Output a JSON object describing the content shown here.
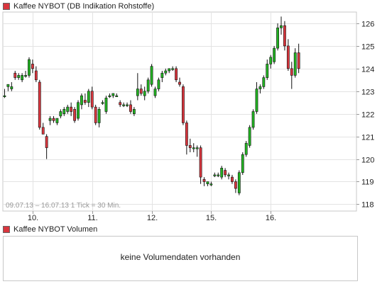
{
  "main_legend": {
    "label": "Kaffee NYBOT (DB Indikation Rohstoffe)",
    "color": "#d9363e"
  },
  "volume_legend": {
    "label": "Kaffee NYBOT Volumen",
    "color": "#d9363e"
  },
  "volume_panel": {
    "message": "keine Volumendaten vorhanden"
  },
  "chart_data": [
    {
      "type": "candlestick",
      "title": "Kaffee NYBOT (DB Indikation Rohstoffe)",
      "info": "09.07.13 – 16.07.13   1 Tick = 30 Min.",
      "x_ticks": [
        "10.",
        "11.",
        "12.",
        "15.",
        "16."
      ],
      "x_tick_positions": [
        8,
        25,
        42,
        59,
        76
      ],
      "y_ticks": [
        118,
        119,
        120,
        121,
        122,
        123,
        124,
        125,
        126
      ],
      "ylim": [
        117.7,
        126.5
      ],
      "xlim": [
        -0.5,
        100.5
      ],
      "grid": true,
      "y_axis_side": "right",
      "up_color": "#22b422",
      "down_color": "#d9363e",
      "candles": [
        [
          0,
          122.8,
          123.1,
          122.7,
          122.8
        ],
        [
          1,
          123.2,
          123.3,
          123.0,
          123.3
        ],
        [
          2,
          123.1,
          123.4,
          123.0,
          123.2
        ],
        [
          3,
          123.8,
          123.9,
          123.5,
          123.6
        ],
        [
          4,
          123.6,
          123.8,
          123.5,
          123.7
        ],
        [
          5,
          123.5,
          123.8,
          123.4,
          123.7
        ],
        [
          6,
          123.7,
          123.9,
          123.6,
          123.7
        ],
        [
          7,
          123.7,
          124.5,
          123.6,
          124.4
        ],
        [
          8,
          124.2,
          124.4,
          123.8,
          124.0
        ],
        [
          9,
          123.9,
          124.1,
          123.4,
          123.5
        ],
        [
          10,
          123.4,
          123.5,
          121.3,
          121.4
        ],
        [
          11,
          121.4,
          121.6,
          121.1,
          121.1
        ],
        [
          12,
          121.0,
          121.1,
          120.0,
          120.5
        ],
        [
          13,
          121.7,
          121.9,
          121.5,
          121.8
        ],
        [
          14,
          121.8,
          121.9,
          121.6,
          121.7
        ],
        [
          15,
          121.6,
          121.8,
          121.5,
          121.8
        ],
        [
          16,
          121.9,
          122.2,
          121.8,
          122.1
        ],
        [
          17,
          122.0,
          122.3,
          121.9,
          122.2
        ],
        [
          18,
          122.1,
          122.4,
          122.0,
          122.3
        ],
        [
          19,
          122.3,
          122.5,
          121.9,
          122.1
        ],
        [
          20,
          122.2,
          122.3,
          121.6,
          121.7
        ],
        [
          21,
          121.8,
          122.6,
          121.7,
          122.5
        ],
        [
          22,
          122.4,
          122.9,
          122.2,
          122.8
        ],
        [
          23,
          122.6,
          122.9,
          122.4,
          122.5
        ],
        [
          24,
          122.5,
          123.1,
          122.3,
          123.0
        ],
        [
          25,
          123.0,
          123.2,
          122.2,
          122.3
        ],
        [
          26,
          122.3,
          122.4,
          121.5,
          121.6
        ],
        [
          27,
          121.6,
          122.3,
          121.4,
          122.2
        ],
        [
          28,
          122.5,
          122.6,
          122.4,
          122.5
        ],
        [
          29,
          122.1,
          122.8,
          122.0,
          122.7
        ],
        [
          30,
          122.8,
          122.9,
          122.7,
          122.8
        ],
        [
          31,
          122.8,
          122.9,
          122.7,
          122.9
        ],
        [
          32,
          122.8,
          122.9,
          122.8,
          122.8
        ],
        [
          33,
          122.5,
          122.6,
          122.3,
          122.4
        ],
        [
          34,
          122.4,
          122.5,
          122.3,
          122.4
        ],
        [
          35,
          122.4,
          122.5,
          122.3,
          122.4
        ],
        [
          36,
          122.4,
          122.6,
          122.0,
          122.1
        ],
        [
          37,
          122.0,
          122.3,
          121.9,
          122.2
        ],
        [
          38,
          122.8,
          123.8,
          122.6,
          123.1
        ],
        [
          39,
          123.1,
          123.3,
          122.8,
          122.9
        ],
        [
          40,
          122.8,
          123.2,
          122.6,
          123.0
        ],
        [
          41,
          123.0,
          123.6,
          122.9,
          123.5
        ],
        [
          42,
          123.3,
          124.2,
          123.2,
          124.1
        ],
        [
          43,
          122.8,
          123.2,
          122.7,
          123.1
        ],
        [
          44,
          123.1,
          123.6,
          123.0,
          123.5
        ],
        [
          45,
          123.6,
          123.9,
          123.4,
          123.8
        ],
        [
          46,
          123.8,
          124.0,
          123.7,
          123.9
        ],
        [
          47,
          123.9,
          124.0,
          123.8,
          124.0
        ],
        [
          48,
          124.0,
          124.1,
          123.9,
          124.0
        ],
        [
          49,
          124.0,
          124.1,
          123.4,
          123.5
        ],
        [
          50,
          123.4,
          123.6,
          123.2,
          123.3
        ],
        [
          51,
          123.2,
          123.3,
          121.5,
          121.6
        ],
        [
          52,
          121.6,
          121.7,
          120.2,
          120.6
        ],
        [
          53,
          120.6,
          120.9,
          120.3,
          120.5
        ],
        [
          54,
          120.5,
          120.7,
          120.3,
          120.5
        ],
        [
          55,
          120.5,
          120.6,
          120.1,
          120.5
        ],
        [
          56,
          120.5,
          120.6,
          118.9,
          119.2
        ],
        [
          57,
          119.1,
          119.2,
          118.8,
          119.0
        ],
        [
          58,
          118.9,
          119.0,
          118.8,
          119.0
        ],
        [
          59,
          118.9,
          119.0,
          118.8,
          118.9
        ],
        [
          60,
          119.3,
          119.4,
          119.2,
          119.3
        ],
        [
          61,
          119.3,
          119.4,
          119.2,
          119.3
        ],
        [
          62,
          119.2,
          119.7,
          119.1,
          119.6
        ],
        [
          63,
          119.5,
          119.6,
          119.2,
          119.3
        ],
        [
          64,
          119.3,
          119.4,
          119.1,
          119.3
        ],
        [
          65,
          119.2,
          119.3,
          118.9,
          119.0
        ],
        [
          66,
          119.0,
          119.1,
          118.5,
          118.7
        ],
        [
          67,
          118.5,
          119.5,
          118.4,
          119.4
        ],
        [
          68,
          119.4,
          120.3,
          119.3,
          120.2
        ],
        [
          69,
          120.2,
          120.8,
          120.1,
          120.7
        ],
        [
          70,
          120.6,
          121.5,
          120.5,
          121.4
        ],
        [
          71,
          121.4,
          122.2,
          121.3,
          122.1
        ],
        [
          72,
          122.1,
          123.4,
          122.0,
          123.1
        ],
        [
          73,
          123.1,
          123.3,
          122.9,
          123.2
        ],
        [
          74,
          123.2,
          123.7,
          123.1,
          123.6
        ],
        [
          75,
          123.6,
          124.4,
          123.5,
          124.2
        ],
        [
          76,
          124.2,
          124.6,
          124.0,
          124.5
        ],
        [
          77,
          124.3,
          125.0,
          124.2,
          124.9
        ],
        [
          78,
          124.9,
          126.0,
          124.8,
          125.8
        ],
        [
          79,
          125.8,
          126.3,
          125.5,
          125.9
        ],
        [
          80,
          125.9,
          126.1,
          124.8,
          125.0
        ],
        [
          81,
          125.0,
          125.3,
          123.9,
          124.0
        ],
        [
          82,
          124.0,
          124.3,
          123.1,
          123.7
        ],
        [
          83,
          123.7,
          124.9,
          123.6,
          124.7
        ],
        [
          84,
          124.7,
          125.1,
          123.8,
          124.0
        ]
      ]
    },
    {
      "type": "bar",
      "title": "Kaffee NYBOT Volumen",
      "values": []
    }
  ]
}
